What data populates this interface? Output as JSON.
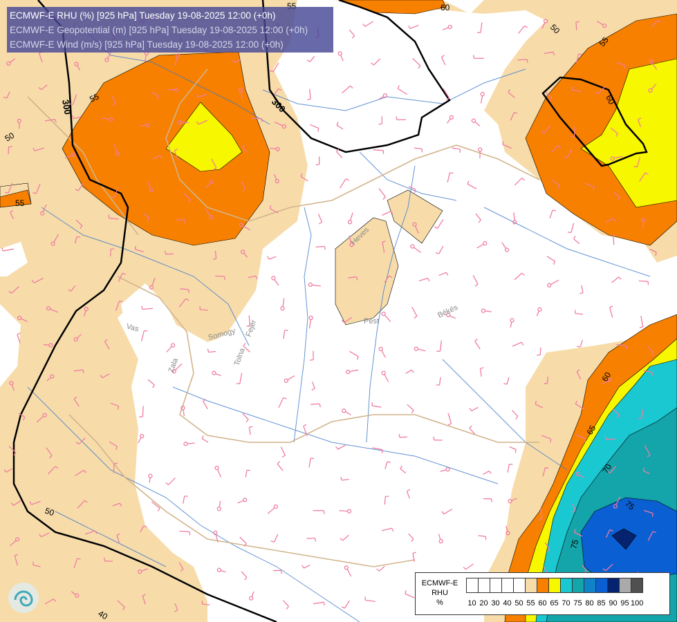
{
  "title": {
    "line1": "ECMWF-E RHU (%) [925 hPa] Tuesday 19-08-2025 12:00 (+0h)",
    "line2": "ECMWF-E Geopotential (m) [925 hPa] Tuesday 19-08-2025 12:00 (+0h)",
    "line3": "ECMWF-E Wind (m/s) [925 hPa] Tuesday 19-08-2025 12:00 (+0h)"
  },
  "contour_labels": {
    "rhu": [
      "55",
      "50",
      "55",
      "60",
      "50",
      "55",
      "55",
      "60",
      "65",
      "70",
      "75",
      "75",
      "50",
      "40",
      "60"
    ],
    "geopotential": [
      "300",
      "300"
    ]
  },
  "region_labels": [
    "Heves",
    "Pest",
    "Békés",
    "Vas",
    "Zala",
    "Somogy",
    "Fejér",
    "Tolna"
  ],
  "legend": {
    "title_line1": "ECMWF-E",
    "title_line2": "RHU",
    "title_line3": "%",
    "ticks": [
      "10",
      "20",
      "30",
      "40",
      "50",
      "55",
      "60",
      "65",
      "70",
      "75",
      "80",
      "85",
      "90",
      "95",
      "100"
    ],
    "colors": [
      "#ffffff",
      "#ffffff",
      "#ffffff",
      "#ffffff",
      "#ffffff",
      "#f7dcaa",
      "#f78000",
      "#f7f700",
      "#1ac8d2",
      "#14a5aa",
      "#0f82c8",
      "#0a5fd2",
      "#05236e",
      "#aaaaaa",
      "#505050"
    ]
  },
  "colors": {
    "rhu_50": "#f7dcaa",
    "rhu_55": "#f78000",
    "rhu_60": "#f7f700",
    "rhu_65": "#1ac8d2",
    "rhu_70": "#14a5aa",
    "rhu_75": "#0a5fd2",
    "rhu_80": "#05236e",
    "geopotential_contour": "#000000",
    "rivers": "#3c78c8",
    "borders": "#d2b48c",
    "wind_barbs": "#f07ca0"
  },
  "logo_icon": "weather-service-logo-icon"
}
